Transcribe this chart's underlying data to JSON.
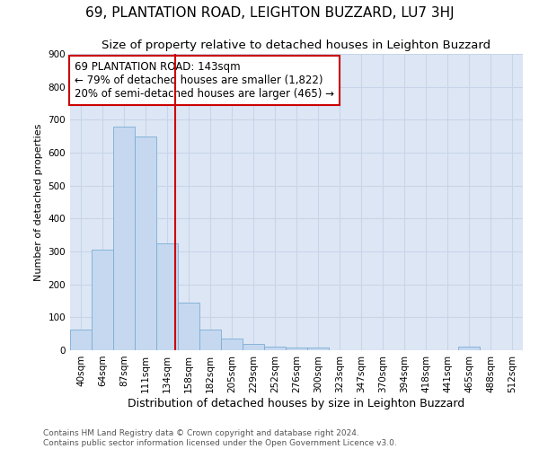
{
  "title": "69, PLANTATION ROAD, LEIGHTON BUZZARD, LU7 3HJ",
  "subtitle": "Size of property relative to detached houses in Leighton Buzzard",
  "xlabel": "Distribution of detached houses by size in Leighton Buzzard",
  "ylabel": "Number of detached properties",
  "annotation_line1": "69 PLANTATION ROAD: 143sqm",
  "annotation_line2": "← 79% of detached houses are smaller (1,822)",
  "annotation_line3": "20% of semi-detached houses are larger (465) →",
  "footer_line1": "Contains HM Land Registry data © Crown copyright and database right 2024.",
  "footer_line2": "Contains public sector information licensed under the Open Government Licence v3.0.",
  "bin_labels": [
    "40sqm",
    "64sqm",
    "87sqm",
    "111sqm",
    "134sqm",
    "158sqm",
    "182sqm",
    "205sqm",
    "229sqm",
    "252sqm",
    "276sqm",
    "300sqm",
    "323sqm",
    "347sqm",
    "370sqm",
    "394sqm",
    "418sqm",
    "441sqm",
    "465sqm",
    "488sqm",
    "512sqm"
  ],
  "bar_heights": [
    62,
    305,
    680,
    650,
    325,
    145,
    62,
    35,
    18,
    10,
    8,
    8,
    0,
    0,
    0,
    0,
    0,
    0,
    12,
    0,
    0
  ],
  "bar_color": "#c5d8f0",
  "bar_edge_color": "#7aadd4",
  "property_line_color": "#cc0000",
  "ylim": [
    0,
    900
  ],
  "yticks": [
    0,
    100,
    200,
    300,
    400,
    500,
    600,
    700,
    800,
    900
  ],
  "grid_color": "#c8d4e8",
  "background_color": "#dde6f5",
  "title_fontsize": 11,
  "subtitle_fontsize": 9.5,
  "annotation_box_color": "white",
  "annotation_box_edge": "#cc0000",
  "annotation_fontsize": 8.5,
  "ylabel_fontsize": 8,
  "xlabel_fontsize": 9,
  "tick_fontsize": 7.5,
  "footer_fontsize": 6.5
}
